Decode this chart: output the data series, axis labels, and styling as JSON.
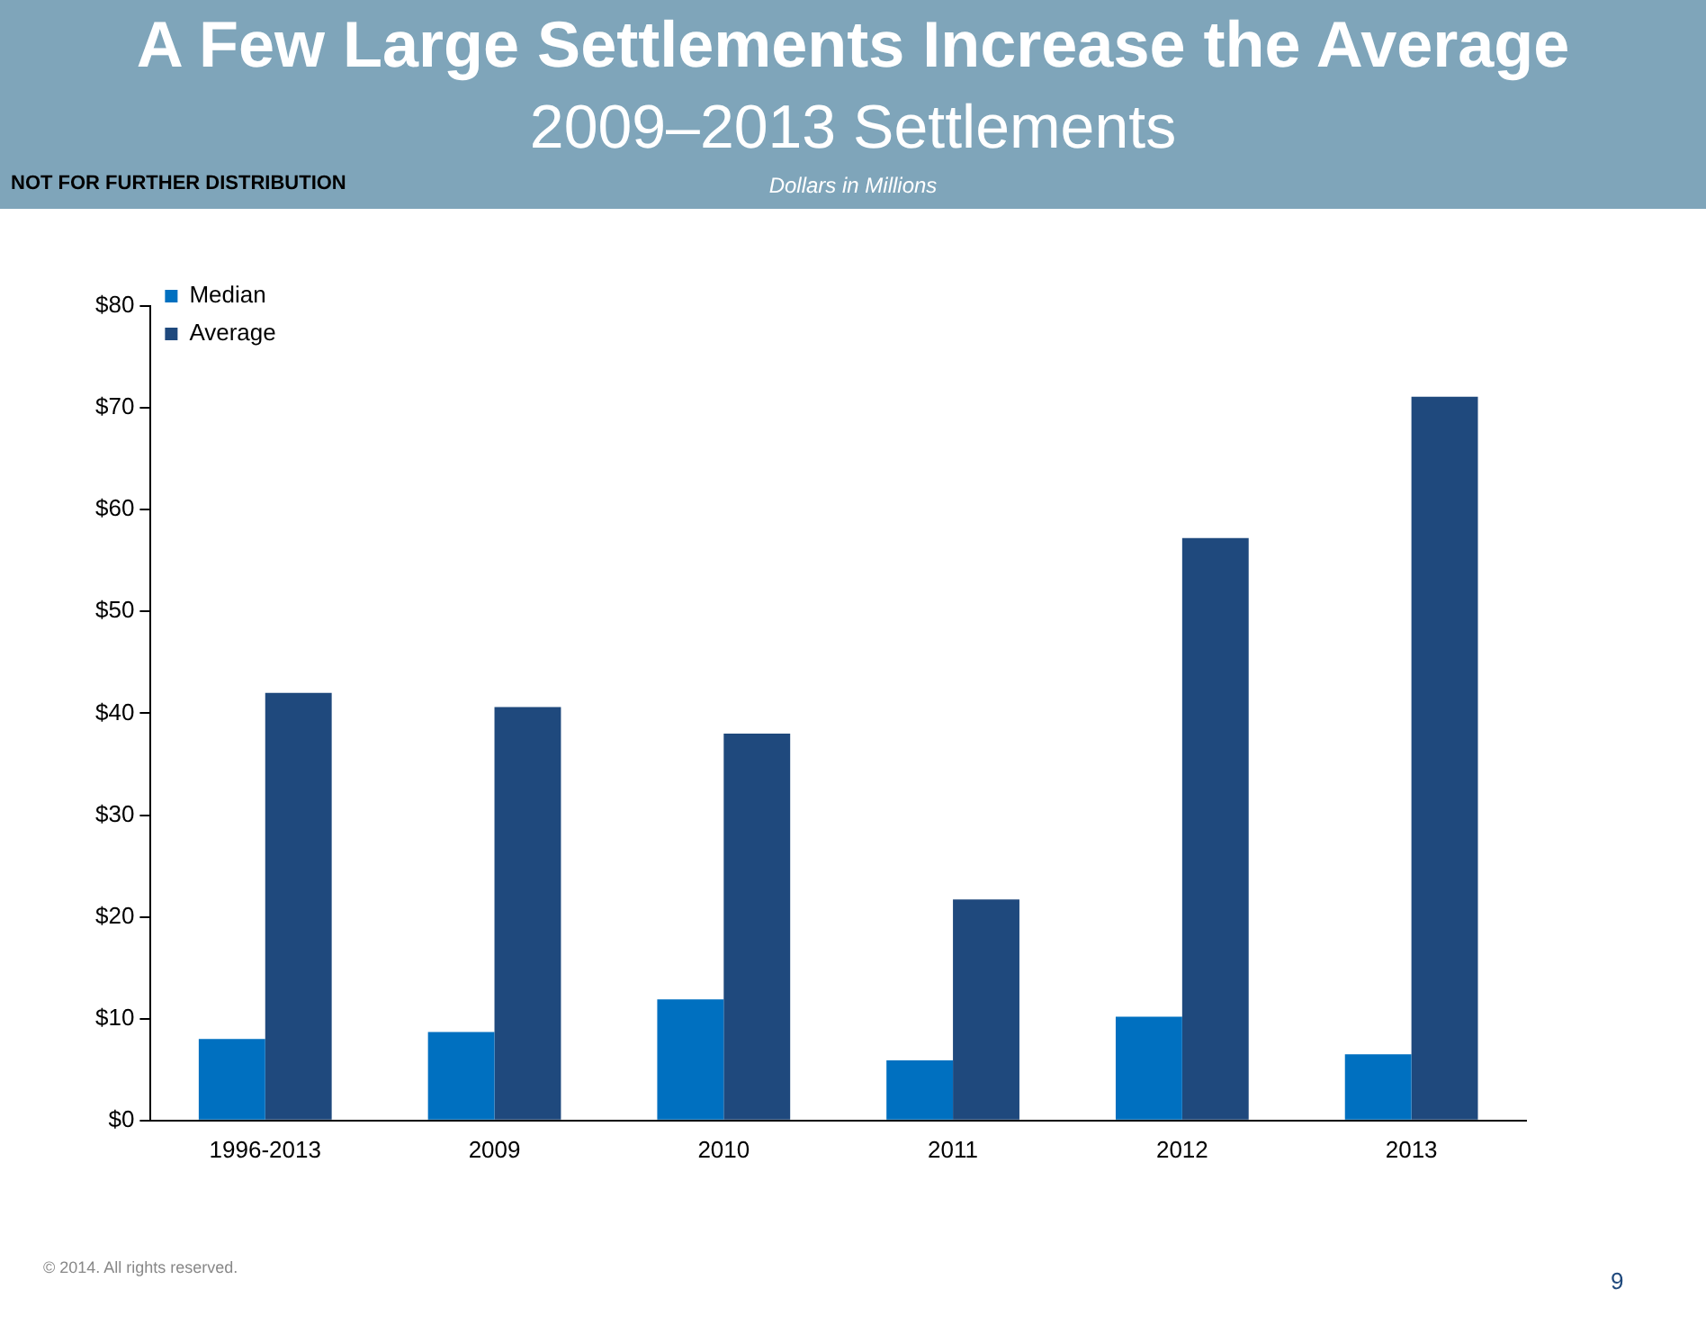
{
  "chart_data": {
    "type": "bar",
    "title": "A Few Large Settlements Increase the Average",
    "subtitle": "2009–2013 Settlements",
    "ylabel": "Dollars in Millions",
    "categories": [
      "1996-2013",
      "2009",
      "2010",
      "2011",
      "2012",
      "2013"
    ],
    "series": [
      {
        "name": "Median",
        "color": "#0070c0",
        "values": [
          8.0,
          8.7,
          11.9,
          5.9,
          10.2,
          6.5
        ]
      },
      {
        "name": "Average",
        "color": "#1f497d",
        "values": [
          42.0,
          40.6,
          38.0,
          21.7,
          57.2,
          71.1
        ]
      }
    ],
    "ylim": [
      0,
      80
    ],
    "yticks": [
      {
        "value": 0,
        "label": "$0"
      },
      {
        "value": 10,
        "label": "$10"
      },
      {
        "value": 20,
        "label": "$20"
      },
      {
        "value": 30,
        "label": "$30"
      },
      {
        "value": 40,
        "label": "$40"
      },
      {
        "value": 50,
        "label": "$50"
      },
      {
        "value": 60,
        "label": "$60"
      },
      {
        "value": 70,
        "label": "$70"
      },
      {
        "value": 80,
        "label": "$80"
      }
    ],
    "grid": false,
    "legend": "top left",
    "annotations": [
      "NOT FOR FURTHER DISTRIBUTION",
      "© 2014. All rights reserved.",
      "9"
    ]
  }
}
